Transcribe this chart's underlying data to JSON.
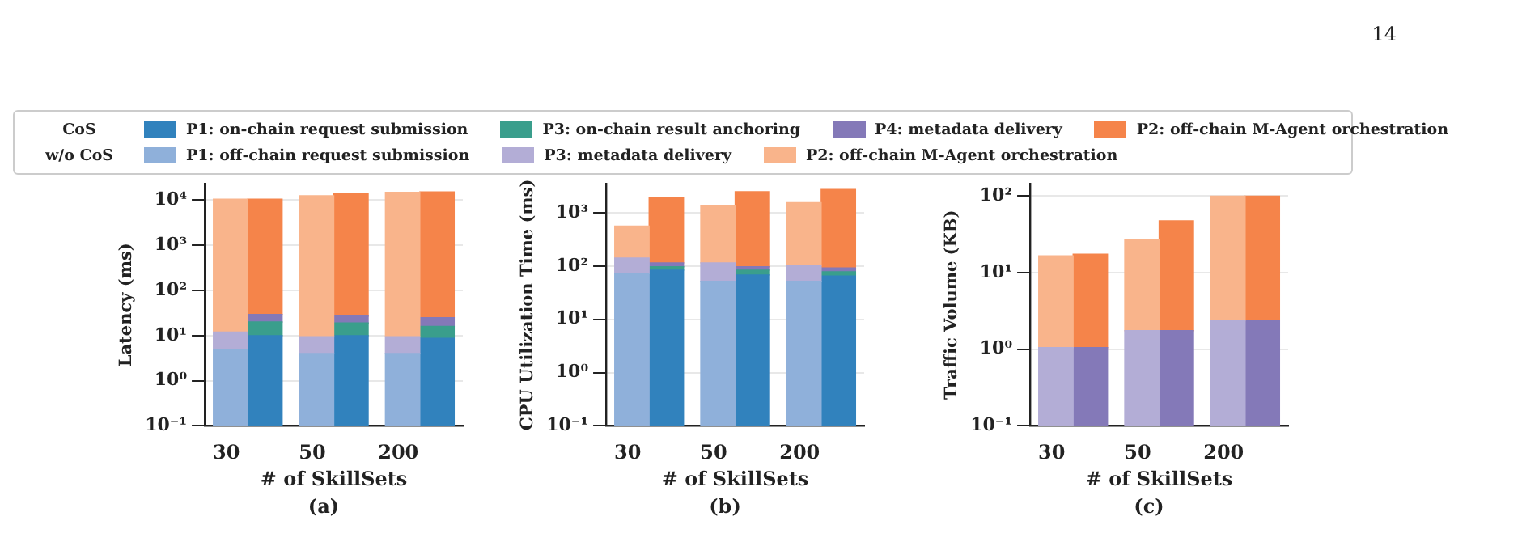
{
  "chart_data": [
    {
      "type": "bar",
      "stacked": true,
      "log": true,
      "grid": "y",
      "legend": "top",
      "legend_title": [
        "CoS",
        "w/o CoS"
      ],
      "xlabel": "# of SkillSets",
      "ylabel": "Latency (ms)",
      "subtitle": "(a)",
      "annotations": [
        "14"
      ],
      "categories": [
        "30",
        null,
        "50",
        null,
        "200",
        null
      ],
      "ylim": [
        0.1,
        23000
      ],
      "yticks": [
        {
          "value": 0.1,
          "label": "10⁻¹"
        },
        {
          "value": 1,
          "label": "10⁰"
        },
        {
          "value": 10,
          "label": "10¹"
        },
        {
          "value": 100,
          "label": "10²"
        },
        {
          "value": 1000,
          "label": "10³"
        },
        {
          "value": 10000,
          "label": "10⁴"
        }
      ],
      "series": [
        {
          "name": "P1: off-chain request submission",
          "color": "#8fb0da",
          "values": [
            5,
            null,
            4,
            null,
            4,
            null
          ]
        },
        {
          "name": "P3: metadata delivery",
          "color": "#b3add6",
          "values": [
            7,
            null,
            5.5,
            null,
            5.5,
            null
          ]
        },
        {
          "name": "P2: off-chain M-Agent orchestration",
          "color": "#f9b48b",
          "values": [
            10500,
            null,
            12500,
            null,
            14900,
            null
          ]
        },
        {
          "name": "P1: on-chain request submission",
          "color": "#3182bd",
          "values": [
            null,
            10,
            null,
            10,
            null,
            8.7
          ]
        },
        {
          "name": "P3: on-chain result anchoring",
          "color": "#3a9e8c",
          "values": [
            null,
            10,
            null,
            9,
            null,
            7.3
          ]
        },
        {
          "name": "P4: metadata delivery",
          "color": "#8479b8",
          "values": [
            null,
            9.5,
            null,
            8,
            null,
            9
          ]
        },
        {
          "name": "P2: off-chain M-Agent orchestration",
          "color": "#f5844a",
          "values": [
            null,
            10500,
            null,
            14000,
            null,
            15200
          ]
        }
      ]
    },
    {
      "type": "bar",
      "stacked": true,
      "log": true,
      "grid": "y",
      "xlabel": "# of SkillSets",
      "ylabel": "CPU Utilization Time (ms)",
      "subtitle": "(b)",
      "categories": [
        "30",
        null,
        "50",
        null,
        "200",
        null
      ],
      "ylim": [
        0.1,
        3500
      ],
      "yticks": [
        {
          "value": 0.1,
          "label": "10⁻¹"
        },
        {
          "value": 1,
          "label": "10⁰"
        },
        {
          "value": 10,
          "label": "10¹"
        },
        {
          "value": 100,
          "label": "10²"
        },
        {
          "value": 1000,
          "label": "10³"
        }
      ],
      "series": [
        {
          "color": "#8fb0da",
          "values": [
            72,
            null,
            52,
            null,
            52,
            null
          ]
        },
        {
          "color": "#b3add6",
          "values": [
            70,
            null,
            63,
            null,
            51,
            null
          ]
        },
        {
          "color": "#f9b48b",
          "values": [
            420,
            null,
            1240,
            null,
            1450,
            null
          ]
        },
        {
          "color": "#3182bd",
          "values": [
            null,
            84,
            null,
            68,
            null,
            65
          ]
        },
        {
          "color": "#3a9e8c",
          "values": [
            null,
            13,
            null,
            16,
            null,
            13
          ]
        },
        {
          "color": "#8479b8",
          "values": [
            null,
            18,
            null,
            13,
            null,
            14
          ]
        },
        {
          "color": "#f5844a",
          "values": [
            null,
            1840,
            null,
            2400,
            null,
            2660
          ]
        }
      ]
    },
    {
      "type": "bar",
      "stacked": true,
      "log": true,
      "grid": "y",
      "xlabel": "# of SkillSets",
      "ylabel": "Traffic Volume (KB)",
      "subtitle": "(c)",
      "categories": [
        "30",
        null,
        "50",
        null,
        "200",
        null
      ],
      "ylim": [
        0.1,
        145
      ],
      "yticks": [
        {
          "value": 0.1,
          "label": "10⁻¹"
        },
        {
          "value": 1,
          "label": "10⁰"
        },
        {
          "value": 10,
          "label": "10¹"
        },
        {
          "value": 100,
          "label": "10²"
        }
      ],
      "series": [
        {
          "color": "#b3add6",
          "values": [
            1.05,
            null,
            1.75,
            null,
            2.4,
            null
          ]
        },
        {
          "color": "#f9b48b",
          "values": [
            15.6,
            null,
            25.7,
            null,
            97.6,
            null
          ]
        },
        {
          "color": "#8479b8",
          "values": [
            null,
            1.05,
            null,
            1.75,
            null,
            2.4
          ]
        },
        {
          "color": "#f5844a",
          "values": [
            null,
            16.4,
            null,
            46,
            null,
            97.6
          ]
        }
      ]
    }
  ]
}
